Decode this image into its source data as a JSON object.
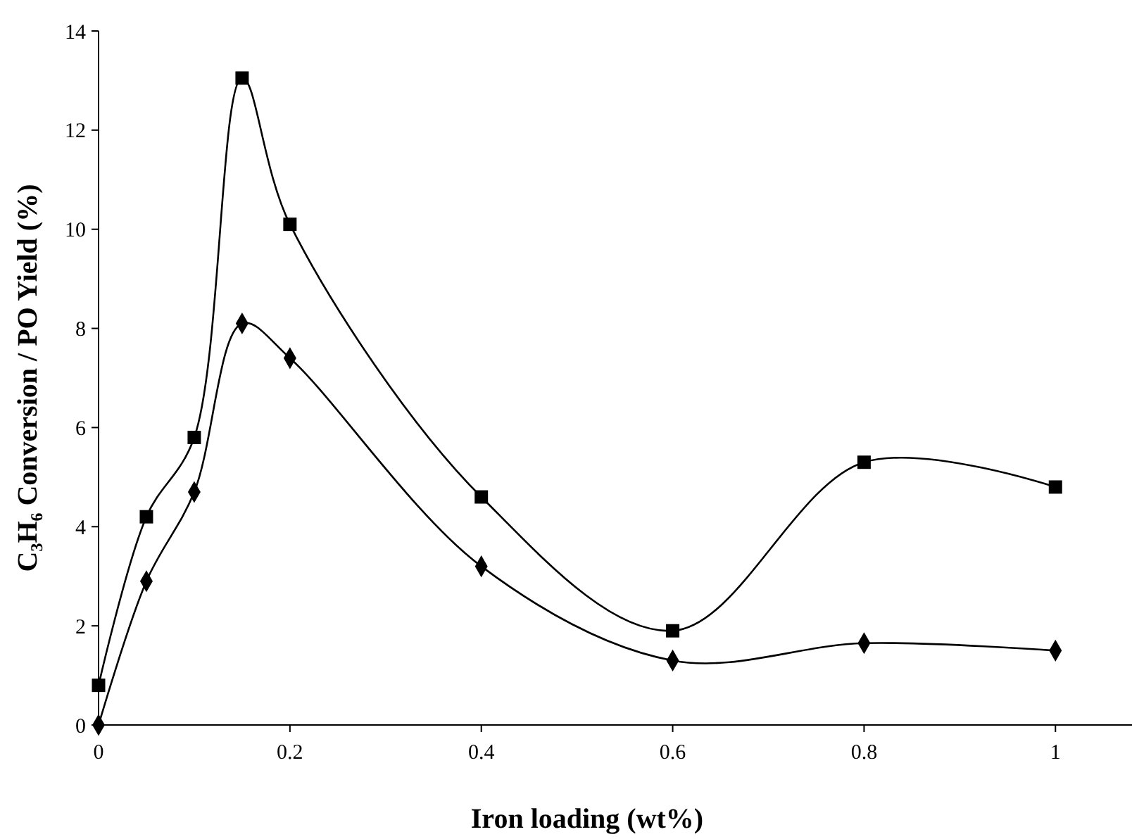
{
  "chart_data": {
    "type": "line",
    "xlabel": "Iron loading (wt%)",
    "ylabel": "C₃H₆ Conversion / PO Yield (%)",
    "x": [
      0,
      0.05,
      0.1,
      0.15,
      0.2,
      0.4,
      0.6,
      0.8,
      1.0
    ],
    "xlim": [
      0,
      1.08
    ],
    "xticks": [
      0,
      0.2,
      0.4,
      0.6,
      0.8,
      1
    ],
    "ylim": [
      0,
      14
    ],
    "yticks": [
      0,
      2,
      4,
      6,
      8,
      10,
      12,
      14
    ],
    "grid": false,
    "line_style": "solid",
    "series": [
      {
        "color": "#000000",
        "marker": "square",
        "values": [
          0.8,
          4.2,
          5.8,
          13.05,
          10.1,
          4.6,
          1.9,
          5.3,
          4.8
        ]
      },
      {
        "color": "#000000",
        "marker": "diamond",
        "values": [
          0,
          2.9,
          4.7,
          8.1,
          7.4,
          3.2,
          1.3,
          1.65,
          1.5
        ]
      }
    ]
  }
}
